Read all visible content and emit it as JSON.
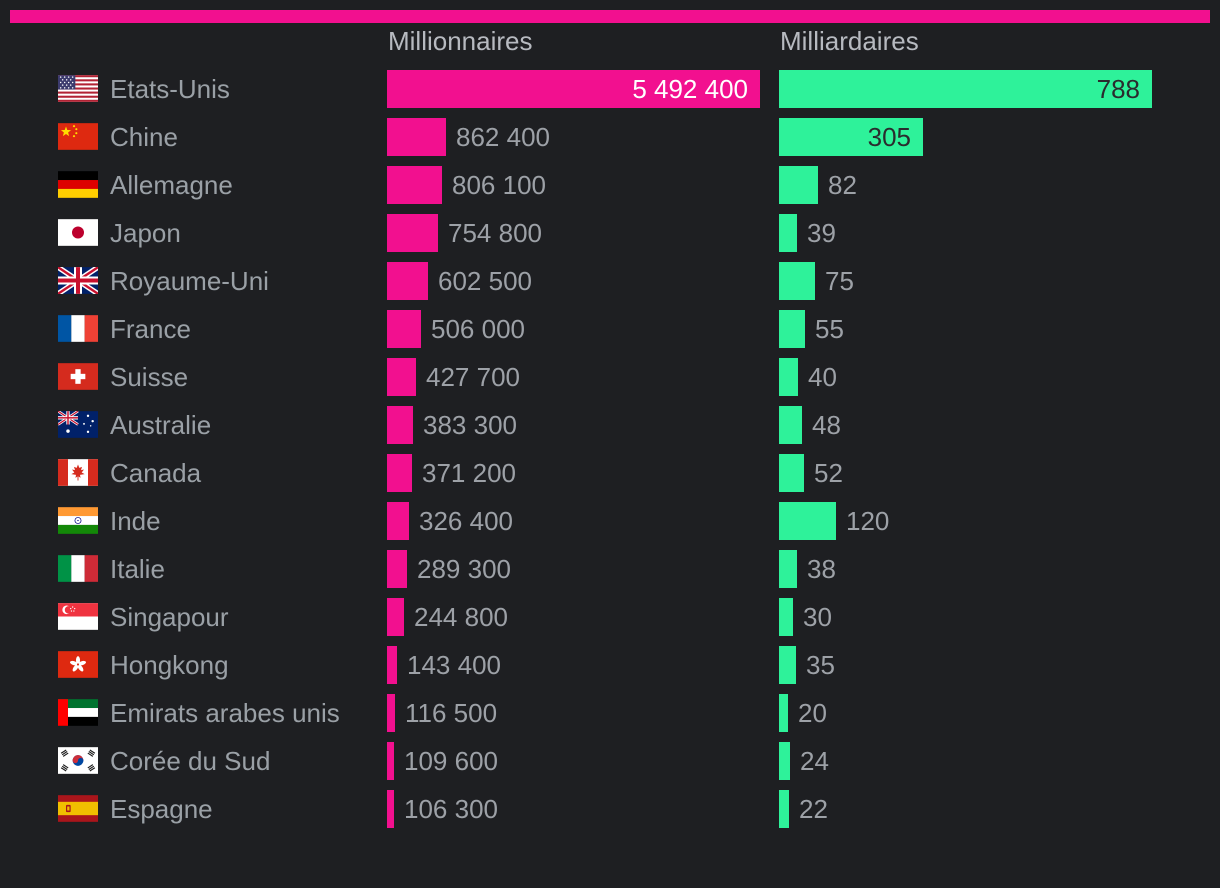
{
  "page": {
    "background_color": "#1e1f22",
    "accent_bar_color": "#f2108f"
  },
  "chart_data": {
    "type": "bar",
    "orientation": "horizontal",
    "column_headers": [
      "Millionnaires",
      "Milliardaires"
    ],
    "categories": [
      "Etats-Unis",
      "Chine",
      "Allemagne",
      "Japon",
      "Royaume-Uni",
      "France",
      "Suisse",
      "Australie",
      "Canada",
      "Inde",
      "Italie",
      "Singapour",
      "Hongkong",
      "Emirats arabes unis",
      "Corée du Sud",
      "Espagne"
    ],
    "flags": [
      "us",
      "cn",
      "de",
      "jp",
      "gb",
      "fr",
      "ch",
      "au",
      "ca",
      "in",
      "it",
      "sg",
      "hk",
      "ae",
      "kr",
      "es"
    ],
    "series": [
      {
        "key": "millionnaires",
        "name": "Millionnaires",
        "color": "#f2108f",
        "values": [
          5492400,
          862400,
          806100,
          754800,
          602500,
          506000,
          427700,
          383300,
          371200,
          326400,
          289300,
          244800,
          143400,
          116500,
          109600,
          106300
        ],
        "labels": [
          "5 492 400",
          "862 400",
          "806 100",
          "754 800",
          "602 500",
          "506 000",
          "427 700",
          "383 300",
          "371 200",
          "326 400",
          "289 300",
          "244 800",
          "143 400",
          "116 500",
          "109 600",
          "106 300"
        ]
      },
      {
        "key": "milliardaires",
        "name": "Milliardaires",
        "color": "#2ef29a",
        "values": [
          788,
          305,
          82,
          39,
          75,
          55,
          40,
          48,
          52,
          120,
          38,
          30,
          35,
          20,
          24,
          22
        ],
        "labels": [
          "788",
          "305",
          "82",
          "39",
          "75",
          "55",
          "40",
          "48",
          "52",
          "120",
          "38",
          "30",
          "35",
          "20",
          "24",
          "22"
        ]
      }
    ],
    "axis": {
      "scaling": "each column scaled independently to its own maximum",
      "max_values": [
        5492400,
        788
      ]
    },
    "legend_position": "column headers above bars",
    "grid": false,
    "value_label_colors": {
      "inside_millionnaires_bar": "#ffffff",
      "inside_milliardaires_bar": "#2a2c2e",
      "outside_bar": "#9da1a7"
    },
    "text_colors": {
      "country": "#9aa0a6",
      "header": "#b7bac0"
    }
  }
}
